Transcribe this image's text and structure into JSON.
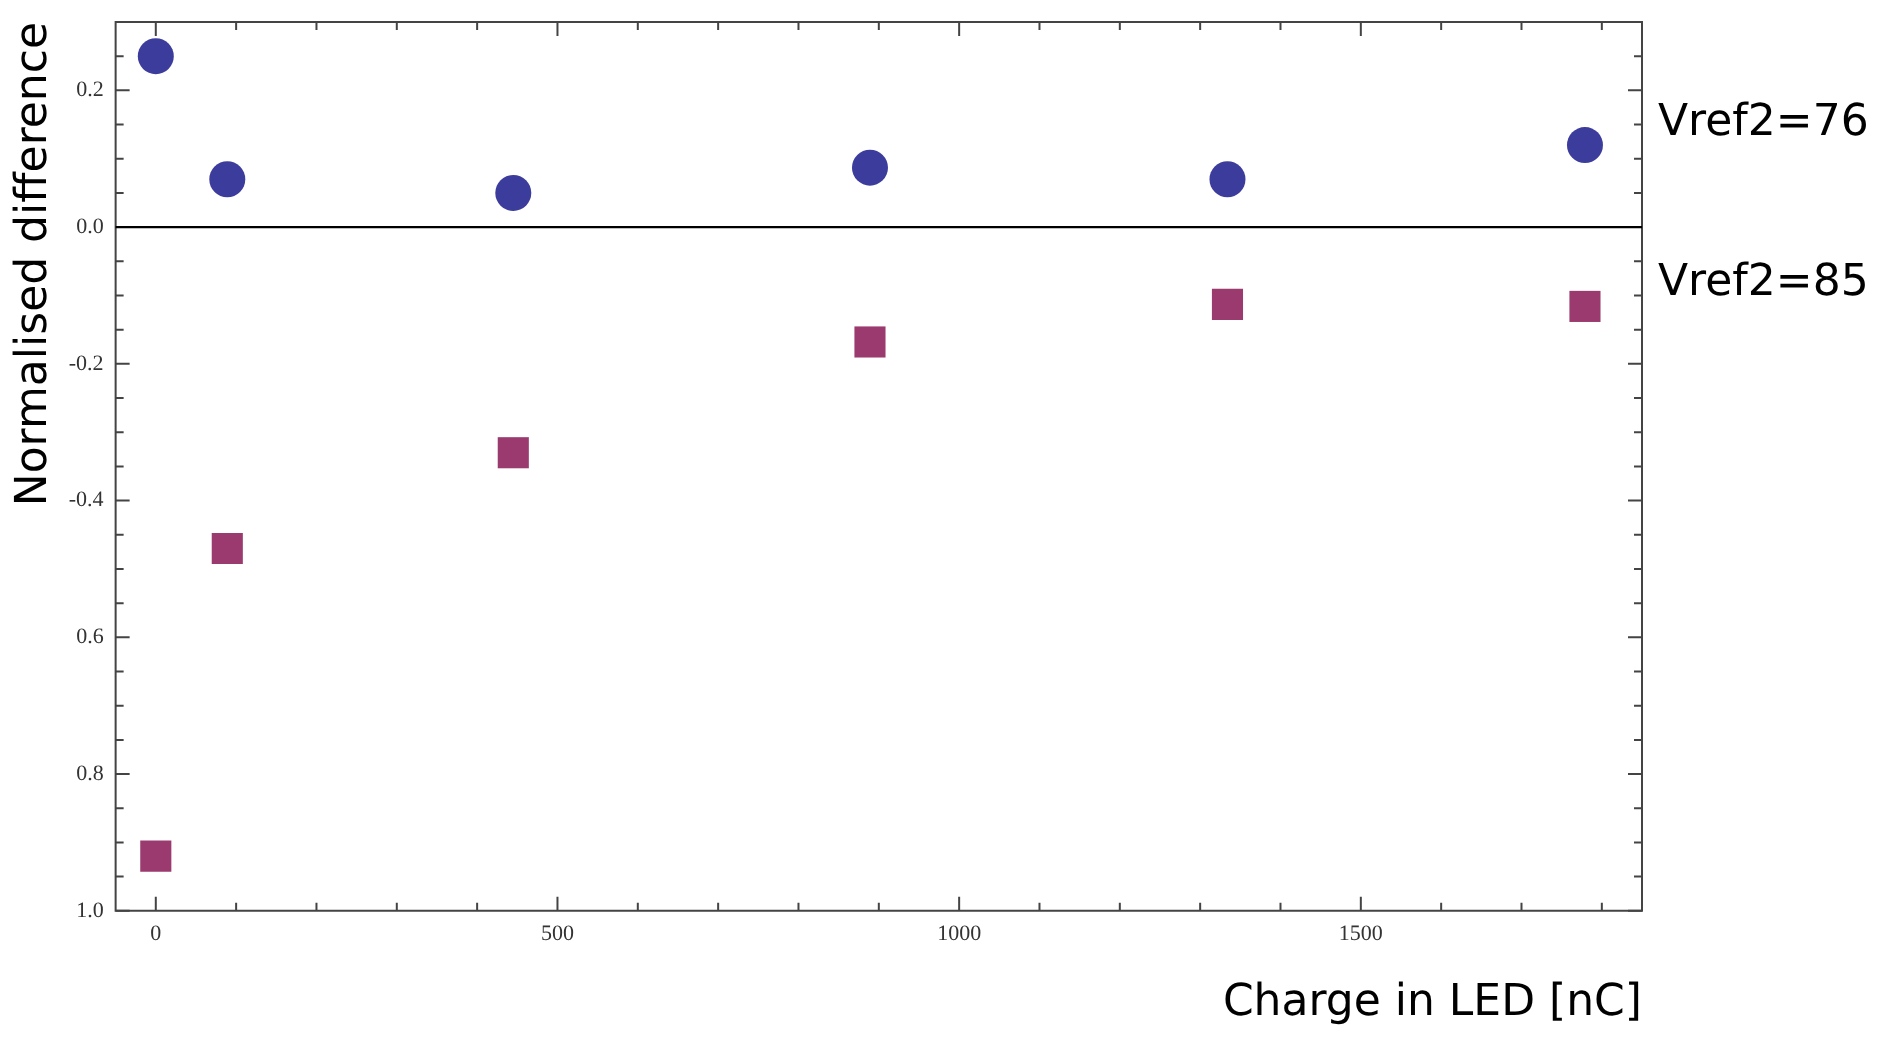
{
  "chart_data": {
    "type": "scatter",
    "xlabel": "Charge in LED [nC]",
    "ylabel": "Normalised difference",
    "x": [
      0,
      89,
      445,
      889,
      1334,
      1779
    ],
    "series": [
      {
        "name": "Vref2=76",
        "color": "#3c3c9c",
        "marker": "circle",
        "values": [
          0.25,
          0.07,
          0.05,
          0.087,
          0.07,
          0.12
        ]
      },
      {
        "name": "Vref2=85",
        "color": "#9b3a6e",
        "marker": "square",
        "values": [
          -0.92,
          -0.47,
          -0.33,
          -0.168,
          -0.113,
          -0.116
        ]
      }
    ],
    "xlim": [
      -50,
      1850
    ],
    "xticks": [
      0,
      {
        "value": 100,
        "label": null
      },
      {
        "value": 200,
        "label": null
      },
      {
        "value": 300,
        "label": null
      },
      {
        "value": 400,
        "label": null
      },
      500,
      {
        "value": 600,
        "label": null
      },
      {
        "value": 700,
        "label": null
      },
      {
        "value": 800,
        "label": null
      },
      {
        "value": 900,
        "label": null
      },
      1000,
      {
        "value": 1100,
        "label": null
      },
      {
        "value": 1200,
        "label": null
      },
      {
        "value": 1300,
        "label": null
      },
      {
        "value": 1400,
        "label": null
      },
      1500,
      {
        "value": 1600,
        "label": null
      },
      {
        "value": 1700,
        "label": null
      },
      {
        "value": 1800,
        "label": null
      }
    ],
    "ylim": [
      -1.0,
      0.3
    ],
    "yticks": [
      {
        "value": 0.25,
        "label": null
      },
      {
        "value": 0.2,
        "label": "0.2"
      },
      {
        "value": 0.15,
        "label": null
      },
      {
        "value": 0.1,
        "label": null
      },
      {
        "value": 0.05,
        "label": null
      },
      {
        "value": 0,
        "label": "0.0"
      },
      {
        "value": -0.05,
        "label": null
      },
      {
        "value": -0.1,
        "label": null
      },
      {
        "value": -0.15,
        "label": null
      },
      {
        "value": -0.2,
        "label": "-0.2"
      },
      {
        "value": -0.25,
        "label": null
      },
      {
        "value": -0.3,
        "label": null
      },
      {
        "value": -0.35,
        "label": null
      },
      {
        "value": -0.4,
        "label": "-0.4"
      },
      {
        "value": -0.45,
        "label": null
      },
      {
        "value": -0.5,
        "label": null
      },
      {
        "value": -0.55,
        "label": null
      },
      {
        "value": -0.6,
        "label": "0.6"
      },
      {
        "value": -0.65,
        "label": null
      },
      {
        "value": -0.7,
        "label": null
      },
      {
        "value": -0.75,
        "label": null
      },
      {
        "value": -0.8,
        "label": "0.8"
      },
      {
        "value": -0.85,
        "label": null
      },
      {
        "value": -0.9,
        "label": null
      },
      {
        "value": -0.95,
        "label": null
      },
      {
        "value": -1.0,
        "label": "1.0"
      }
    ],
    "ref_lines": [
      {
        "axis": "y",
        "value": 0,
        "color": "#000000"
      }
    ],
    "grid": false,
    "legend": false
  }
}
